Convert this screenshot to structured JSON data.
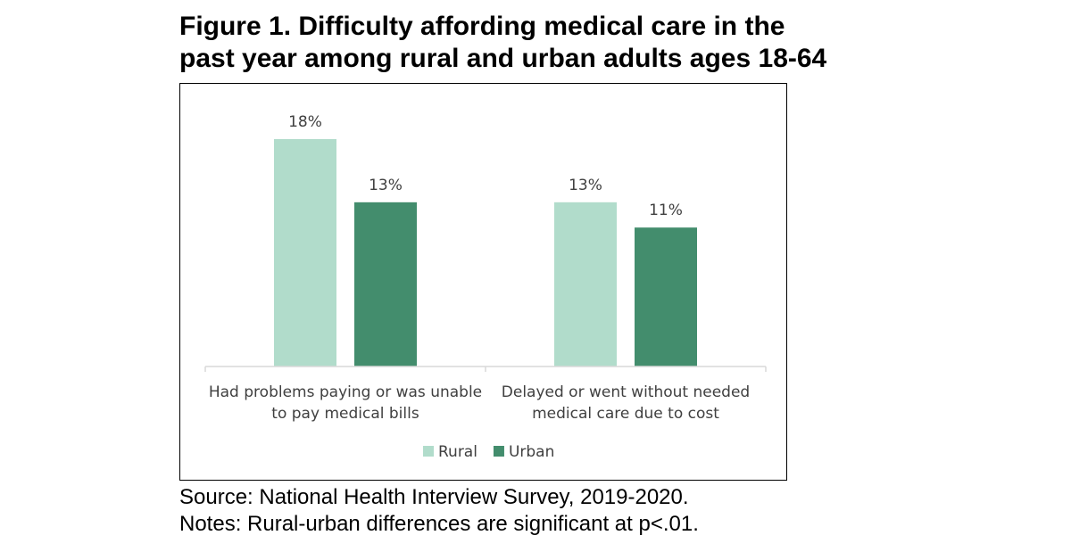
{
  "title_lines": [
    "Figure 1. Difficulty affording medical care in the",
    "past year among rural and urban adults ages 18-64"
  ],
  "chart_data": {
    "type": "bar",
    "categories": [
      [
        "Had problems paying or was unable",
        "to pay medical bills"
      ],
      [
        "Delayed or went without needed",
        "medical care due to cost"
      ]
    ],
    "series": [
      {
        "name": "Rural",
        "color": "#b1dccb",
        "values": [
          18,
          13
        ],
        "labels": [
          "18%",
          "13%"
        ]
      },
      {
        "name": "Urban",
        "color": "#438d6d",
        "values": [
          13,
          11
        ],
        "labels": [
          "13%",
          "11%"
        ]
      }
    ],
    "ylim": [
      0,
      18
    ],
    "axis_color": "#d9d9d9",
    "legend_position": "bottom",
    "xlabel": "",
    "ylabel": ""
  },
  "notes": [
    "Source: National Health Interview Survey, 2019-2020.",
    "Notes: Rural-urban differences are significant at p<.01."
  ]
}
